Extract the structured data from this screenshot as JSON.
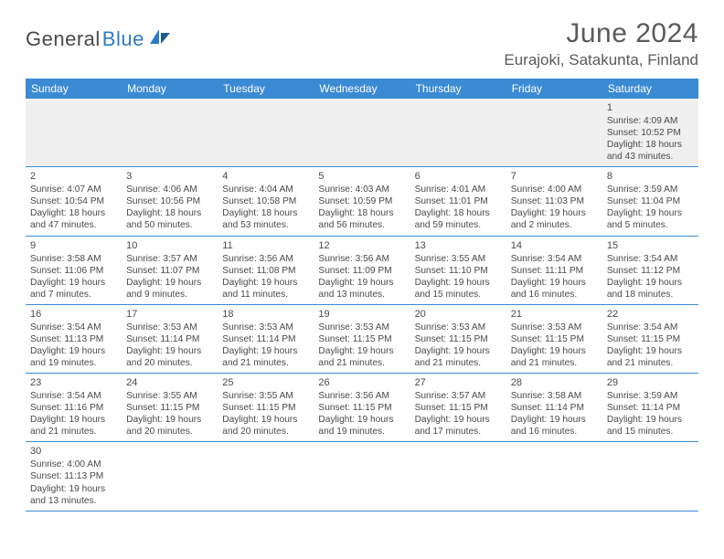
{
  "logo": {
    "part1": "General",
    "part2": "Blue"
  },
  "title": "June 2024",
  "location": "Eurajoki, Satakunta, Finland",
  "colors": {
    "header_bg": "#3b8bd4",
    "header_text": "#ffffff",
    "row_border": "#3b8bd4",
    "shade_bg": "#f0f0f0",
    "text": "#4a4a4a",
    "logo_gray": "#4a4a4a",
    "logo_blue": "#2e7bc4"
  },
  "weekdays": [
    "Sunday",
    "Monday",
    "Tuesday",
    "Wednesday",
    "Thursday",
    "Friday",
    "Saturday"
  ],
  "weeks": [
    [
      null,
      null,
      null,
      null,
      null,
      null,
      {
        "n": "1",
        "sr": "Sunrise: 4:09 AM",
        "ss": "Sunset: 10:52 PM",
        "d1": "Daylight: 18 hours",
        "d2": "and 43 minutes."
      }
    ],
    [
      {
        "n": "2",
        "sr": "Sunrise: 4:07 AM",
        "ss": "Sunset: 10:54 PM",
        "d1": "Daylight: 18 hours",
        "d2": "and 47 minutes."
      },
      {
        "n": "3",
        "sr": "Sunrise: 4:06 AM",
        "ss": "Sunset: 10:56 PM",
        "d1": "Daylight: 18 hours",
        "d2": "and 50 minutes."
      },
      {
        "n": "4",
        "sr": "Sunrise: 4:04 AM",
        "ss": "Sunset: 10:58 PM",
        "d1": "Daylight: 18 hours",
        "d2": "and 53 minutes."
      },
      {
        "n": "5",
        "sr": "Sunrise: 4:03 AM",
        "ss": "Sunset: 10:59 PM",
        "d1": "Daylight: 18 hours",
        "d2": "and 56 minutes."
      },
      {
        "n": "6",
        "sr": "Sunrise: 4:01 AM",
        "ss": "Sunset: 11:01 PM",
        "d1": "Daylight: 18 hours",
        "d2": "and 59 minutes."
      },
      {
        "n": "7",
        "sr": "Sunrise: 4:00 AM",
        "ss": "Sunset: 11:03 PM",
        "d1": "Daylight: 19 hours",
        "d2": "and 2 minutes."
      },
      {
        "n": "8",
        "sr": "Sunrise: 3:59 AM",
        "ss": "Sunset: 11:04 PM",
        "d1": "Daylight: 19 hours",
        "d2": "and 5 minutes."
      }
    ],
    [
      {
        "n": "9",
        "sr": "Sunrise: 3:58 AM",
        "ss": "Sunset: 11:06 PM",
        "d1": "Daylight: 19 hours",
        "d2": "and 7 minutes."
      },
      {
        "n": "10",
        "sr": "Sunrise: 3:57 AM",
        "ss": "Sunset: 11:07 PM",
        "d1": "Daylight: 19 hours",
        "d2": "and 9 minutes."
      },
      {
        "n": "11",
        "sr": "Sunrise: 3:56 AM",
        "ss": "Sunset: 11:08 PM",
        "d1": "Daylight: 19 hours",
        "d2": "and 11 minutes."
      },
      {
        "n": "12",
        "sr": "Sunrise: 3:56 AM",
        "ss": "Sunset: 11:09 PM",
        "d1": "Daylight: 19 hours",
        "d2": "and 13 minutes."
      },
      {
        "n": "13",
        "sr": "Sunrise: 3:55 AM",
        "ss": "Sunset: 11:10 PM",
        "d1": "Daylight: 19 hours",
        "d2": "and 15 minutes."
      },
      {
        "n": "14",
        "sr": "Sunrise: 3:54 AM",
        "ss": "Sunset: 11:11 PM",
        "d1": "Daylight: 19 hours",
        "d2": "and 16 minutes."
      },
      {
        "n": "15",
        "sr": "Sunrise: 3:54 AM",
        "ss": "Sunset: 11:12 PM",
        "d1": "Daylight: 19 hours",
        "d2": "and 18 minutes."
      }
    ],
    [
      {
        "n": "16",
        "sr": "Sunrise: 3:54 AM",
        "ss": "Sunset: 11:13 PM",
        "d1": "Daylight: 19 hours",
        "d2": "and 19 minutes."
      },
      {
        "n": "17",
        "sr": "Sunrise: 3:53 AM",
        "ss": "Sunset: 11:14 PM",
        "d1": "Daylight: 19 hours",
        "d2": "and 20 minutes."
      },
      {
        "n": "18",
        "sr": "Sunrise: 3:53 AM",
        "ss": "Sunset: 11:14 PM",
        "d1": "Daylight: 19 hours",
        "d2": "and 21 minutes."
      },
      {
        "n": "19",
        "sr": "Sunrise: 3:53 AM",
        "ss": "Sunset: 11:15 PM",
        "d1": "Daylight: 19 hours",
        "d2": "and 21 minutes."
      },
      {
        "n": "20",
        "sr": "Sunrise: 3:53 AM",
        "ss": "Sunset: 11:15 PM",
        "d1": "Daylight: 19 hours",
        "d2": "and 21 minutes."
      },
      {
        "n": "21",
        "sr": "Sunrise: 3:53 AM",
        "ss": "Sunset: 11:15 PM",
        "d1": "Daylight: 19 hours",
        "d2": "and 21 minutes."
      },
      {
        "n": "22",
        "sr": "Sunrise: 3:54 AM",
        "ss": "Sunset: 11:15 PM",
        "d1": "Daylight: 19 hours",
        "d2": "and 21 minutes."
      }
    ],
    [
      {
        "n": "23",
        "sr": "Sunrise: 3:54 AM",
        "ss": "Sunset: 11:16 PM",
        "d1": "Daylight: 19 hours",
        "d2": "and 21 minutes."
      },
      {
        "n": "24",
        "sr": "Sunrise: 3:55 AM",
        "ss": "Sunset: 11:15 PM",
        "d1": "Daylight: 19 hours",
        "d2": "and 20 minutes."
      },
      {
        "n": "25",
        "sr": "Sunrise: 3:55 AM",
        "ss": "Sunset: 11:15 PM",
        "d1": "Daylight: 19 hours",
        "d2": "and 20 minutes."
      },
      {
        "n": "26",
        "sr": "Sunrise: 3:56 AM",
        "ss": "Sunset: 11:15 PM",
        "d1": "Daylight: 19 hours",
        "d2": "and 19 minutes."
      },
      {
        "n": "27",
        "sr": "Sunrise: 3:57 AM",
        "ss": "Sunset: 11:15 PM",
        "d1": "Daylight: 19 hours",
        "d2": "and 17 minutes."
      },
      {
        "n": "28",
        "sr": "Sunrise: 3:58 AM",
        "ss": "Sunset: 11:14 PM",
        "d1": "Daylight: 19 hours",
        "d2": "and 16 minutes."
      },
      {
        "n": "29",
        "sr": "Sunrise: 3:59 AM",
        "ss": "Sunset: 11:14 PM",
        "d1": "Daylight: 19 hours",
        "d2": "and 15 minutes."
      }
    ],
    [
      {
        "n": "30",
        "sr": "Sunrise: 4:00 AM",
        "ss": "Sunset: 11:13 PM",
        "d1": "Daylight: 19 hours",
        "d2": "and 13 minutes."
      },
      null,
      null,
      null,
      null,
      null,
      null
    ]
  ]
}
